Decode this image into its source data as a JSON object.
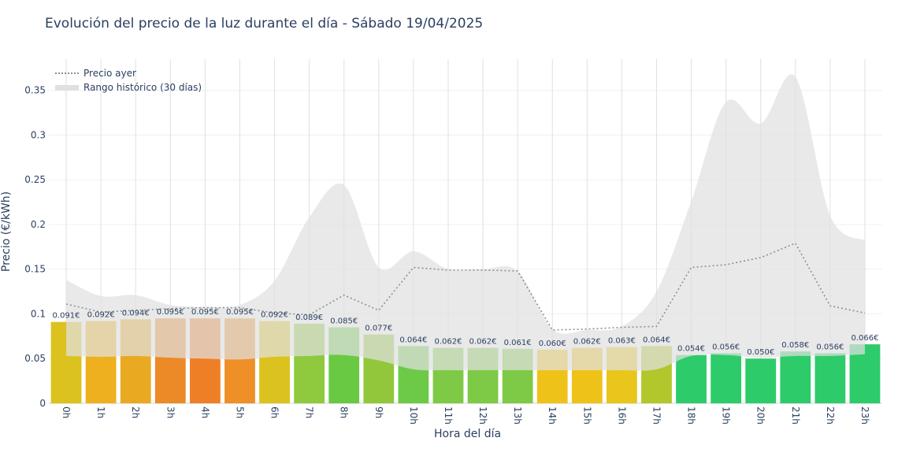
{
  "chart_data": {
    "type": "bar",
    "title": "Evolución del precio de la luz durante el día - Sábado 19/04/2025",
    "xlabel": "Hora del día",
    "ylabel": "Precio (€/kWh)",
    "ylim": [
      0,
      0.385
    ],
    "yticks": [
      0,
      0.05,
      0.1,
      0.15,
      0.2,
      0.25,
      0.3,
      0.35
    ],
    "ytick_labels": [
      "0",
      "0.05",
      "0.1",
      "0.15",
      "0.2",
      "0.25",
      "0.3",
      "0.35"
    ],
    "categories": [
      "0h",
      "1h",
      "2h",
      "3h",
      "4h",
      "5h",
      "6h",
      "7h",
      "8h",
      "9h",
      "10h",
      "11h",
      "12h",
      "13h",
      "14h",
      "15h",
      "16h",
      "17h",
      "18h",
      "19h",
      "20h",
      "21h",
      "22h",
      "23h"
    ],
    "series": [
      {
        "name": "",
        "kind": "bar",
        "values": [
          0.091,
          0.092,
          0.094,
          0.095,
          0.095,
          0.095,
          0.092,
          0.089,
          0.085,
          0.077,
          0.064,
          0.062,
          0.062,
          0.061,
          0.06,
          0.062,
          0.063,
          0.064,
          0.054,
          0.056,
          0.05,
          0.058,
          0.056,
          0.066
        ],
        "labels": [
          "0.091€",
          "0.092€",
          "0.094€",
          "0.095€",
          "0.095€",
          "0.095€",
          "0.092€",
          "0.089€",
          "0.085€",
          "0.077€",
          "0.064€",
          "0.062€",
          "0.062€",
          "0.061€",
          "0.060€",
          "0.062€",
          "0.063€",
          "0.064€",
          "0.054€",
          "0.056€",
          "0.050€",
          "0.058€",
          "0.056€",
          "0.066€"
        ],
        "colors": [
          "#dcc21e",
          "#efb01f",
          "#e9aa22",
          "#ec8a27",
          "#ee7f27",
          "#ee8f27",
          "#dcc21e",
          "#8ec93e",
          "#6ac942",
          "#92c73c",
          "#6cca47",
          "#7ec945",
          "#7ec945",
          "#7ec945",
          "#efc21a",
          "#efc21a",
          "#e8c61c",
          "#b2c72c",
          "#2ecb6a",
          "#2ecb6a",
          "#2ecb6a",
          "#2ecb6a",
          "#2ecb6a",
          "#2ecb6a"
        ]
      },
      {
        "name": "Precio ayer",
        "kind": "line",
        "style": "dotted",
        "color": "#8a8f98",
        "values": [
          0.111,
          0.102,
          0.104,
          0.106,
          0.107,
          0.107,
          0.101,
          0.099,
          0.121,
          0.104,
          0.152,
          0.149,
          0.149,
          0.148,
          0.082,
          0.083,
          0.085,
          0.086,
          0.152,
          0.155,
          0.163,
          0.179,
          0.109,
          0.101
        ]
      },
      {
        "name": "Rango histórico (30 días)",
        "kind": "band",
        "color": "#e0e0e0",
        "upper": [
          0.138,
          0.12,
          0.121,
          0.11,
          0.108,
          0.11,
          0.137,
          0.208,
          0.244,
          0.152,
          0.17,
          0.15,
          0.15,
          0.148,
          0.083,
          0.082,
          0.086,
          0.125,
          0.226,
          0.337,
          0.313,
          0.365,
          0.21,
          0.182
        ],
        "lower": [
          0.053,
          0.052,
          0.053,
          0.051,
          0.05,
          0.049,
          0.052,
          0.053,
          0.054,
          0.048,
          0.038,
          0.037,
          0.037,
          0.037,
          0.037,
          0.037,
          0.037,
          0.038,
          0.053,
          0.054,
          0.051,
          0.053,
          0.053,
          0.055
        ]
      }
    ],
    "legend": {
      "position": "top-left",
      "entries": [
        "Precio ayer",
        "Rango histórico (30 días)"
      ]
    },
    "grid": true
  }
}
